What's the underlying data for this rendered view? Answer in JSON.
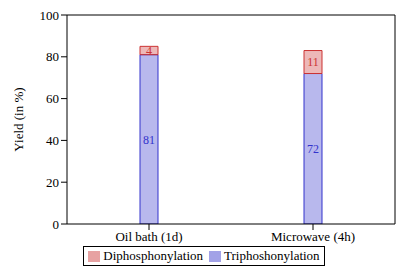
{
  "chart_data": {
    "type": "bar",
    "stacked": true,
    "data_labels": true,
    "legend": "bottom",
    "grid": false,
    "y_label": "Yield (in %)",
    "categories": [
      "Oil bath (1d)",
      "Microwave (4h)"
    ],
    "ylim": [
      0,
      100
    ],
    "yticks": [
      0,
      20,
      40,
      60,
      80,
      100
    ],
    "series": [
      {
        "name": "Triphoshonylation",
        "color": "#3333cc",
        "values": [
          81,
          72
        ]
      },
      {
        "name": "Diphosphonylation",
        "color": "#cc3333",
        "values": [
          4,
          11
        ]
      }
    ]
  }
}
